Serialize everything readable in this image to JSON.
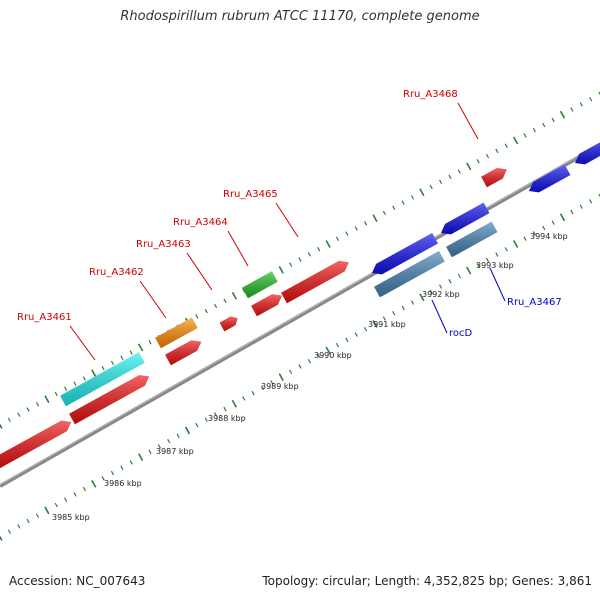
{
  "title": "Rhodospirillum rubrum ATCC 11170, complete genome",
  "footer": {
    "accession": "Accession: NC_007643",
    "summary": "Topology: circular; Length: 4,352,825 bp; Genes: 3,861"
  },
  "colors": {
    "forward_label": "#cc0000",
    "reverse_label": "#0000cc",
    "backbone": "#888888",
    "tick": "#2e7d32"
  },
  "scale_labels": [
    "3985 kbp",
    "3986 kbp",
    "3987 kbp",
    "3988 kbp",
    "3989 kbp",
    "3990 kbp",
    "3991 kbp",
    "3992 kbp",
    "3993 kbp",
    "3994 kbp"
  ],
  "gene_labels": [
    {
      "text": "Rru_A3461",
      "strand": "forward"
    },
    {
      "text": "Rru_A3462",
      "strand": "forward"
    },
    {
      "text": "Rru_A3463",
      "strand": "forward"
    },
    {
      "text": "Rru_A3464",
      "strand": "forward"
    },
    {
      "text": "Rru_A3465",
      "strand": "forward"
    },
    {
      "text": "Rru_A3468",
      "strand": "forward"
    },
    {
      "text": "Rru_A3467",
      "strand": "reverse"
    },
    {
      "text": "rocD",
      "strand": "reverse"
    }
  ],
  "features": [
    {
      "name": "cds-forward",
      "color": "#ee1111"
    },
    {
      "name": "cds-forward-cyan",
      "color": "#22eeee"
    },
    {
      "name": "cds-forward-orange",
      "color": "#ff8c00"
    },
    {
      "name": "cds-forward-green",
      "color": "#22bb22"
    },
    {
      "name": "cds-reverse",
      "color": "#1111ee"
    },
    {
      "name": "cds-reverse-steelblue",
      "color": "#4682b4"
    }
  ]
}
